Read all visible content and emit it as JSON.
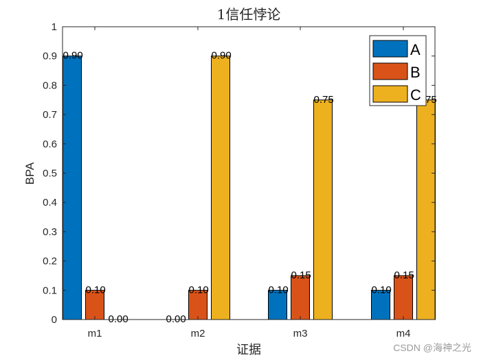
{
  "chart_data": {
    "type": "bar",
    "title": "1信任悖论",
    "xlabel": "证据",
    "ylabel": "BPA",
    "categories": [
      "m1",
      "m2",
      "m3",
      "m4"
    ],
    "series": [
      {
        "name": "A",
        "color": "#0072BD",
        "values": [
          0.9,
          0.0,
          0.1,
          0.1
        ]
      },
      {
        "name": "B",
        "color": "#D95319",
        "values": [
          0.1,
          0.1,
          0.15,
          0.15
        ]
      },
      {
        "name": "C",
        "color": "#EDB120",
        "values": [
          0.0,
          0.9,
          0.75,
          0.75
        ]
      }
    ],
    "ylim": [
      0,
      1
    ],
    "yticks": [
      "0",
      "0.1",
      "0.2",
      "0.3",
      "0.4",
      "0.5",
      "0.6",
      "0.7",
      "0.8",
      "0.9",
      "1"
    ],
    "grid": false,
    "legend_position": "northeast",
    "data_label_format": "%.2f"
  },
  "watermark": "CSDN @海神之光"
}
